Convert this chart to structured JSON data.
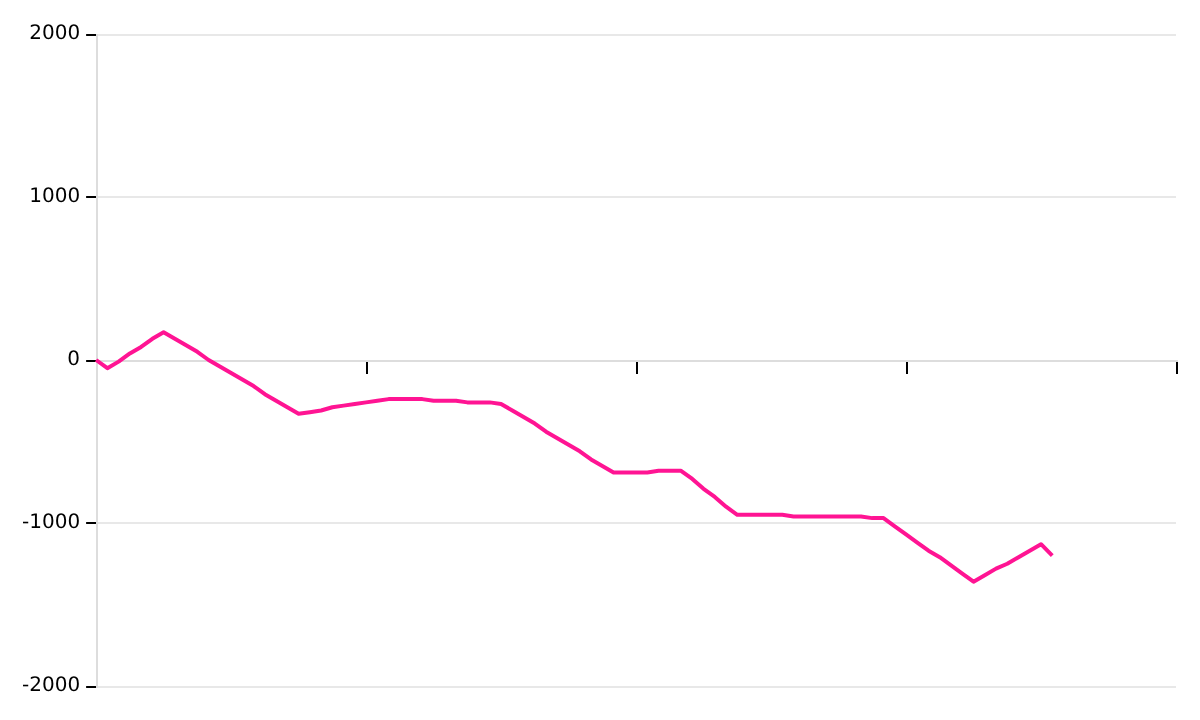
{
  "chart_data": {
    "type": "line",
    "categories": [
      null,
      null,
      null,
      null,
      null,
      null,
      null,
      null,
      null,
      null,
      null,
      null,
      null,
      null,
      null,
      null,
      null,
      null,
      null,
      null,
      null,
      null,
      null,
      null,
      null,
      null,
      null,
      null,
      null,
      null,
      null,
      null,
      null,
      null,
      null,
      null,
      null,
      null,
      null,
      null,
      null,
      null,
      null,
      null,
      null,
      null,
      null,
      null,
      null,
      null,
      null,
      null,
      null,
      null,
      null,
      null,
      null,
      null,
      null,
      null,
      null,
      null,
      null,
      null,
      null,
      null,
      null,
      null,
      null,
      null,
      null,
      null,
      null,
      null,
      null,
      null,
      null,
      null,
      null,
      null,
      null,
      null,
      null,
      null,
      null,
      null,
      null,
      null,
      null,
      null,
      null,
      null,
      null,
      null,
      null,
      null,
      null
    ],
    "series": [
      {
        "color": "#ff1493",
        "values": [
          0,
          -50,
          -10,
          40,
          80,
          130,
          170,
          130,
          90,
          50,
          0,
          -40,
          -80,
          -120,
          -160,
          -210,
          -250,
          -290,
          -330,
          -320,
          -310,
          -290,
          -280,
          -270,
          -260,
          -250,
          -240,
          -240,
          -240,
          -240,
          -250,
          -250,
          -250,
          -260,
          -260,
          -260,
          -270,
          -310,
          -350,
          -390,
          -440,
          -480,
          -520,
          -560,
          -610,
          -650,
          -690,
          -690,
          -690,
          -690,
          -680,
          -680,
          -680,
          -730,
          -790,
          -840,
          -900,
          -950,
          -950,
          -950,
          -950,
          -950,
          -960,
          -960,
          -960,
          -960,
          -960,
          -960,
          -960,
          -970,
          -970,
          -1020,
          -1070,
          -1120,
          -1170,
          -1210,
          -1260,
          -1310,
          -1360,
          -1320,
          -1280,
          -1250,
          -1210,
          -1170,
          -1130,
          -1200,
          null,
          null,
          null,
          null,
          null,
          null,
          null,
          null,
          null,
          null,
          null
        ]
      }
    ],
    "ylim": [
      -2000,
      2000
    ],
    "yticks": [
      -2000,
      -1000,
      0,
      1000,
      2000
    ],
    "tick_labels": "y",
    "grid": "y",
    "legend": false,
    "marker": "none",
    "line_style": "solid"
  }
}
